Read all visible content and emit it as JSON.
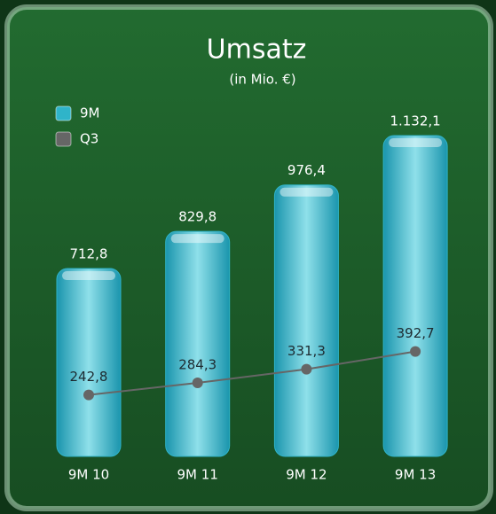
{
  "chart_data": {
    "type": "bar_line",
    "title": "Umsatz",
    "subtitle": "(in Mio. €)",
    "categories": [
      "9M 10",
      "9M 11",
      "9M 12",
      "9M 13"
    ],
    "series": [
      {
        "name": "9M",
        "type": "bar",
        "color": "#2fb4c9",
        "values": [
          712.8,
          829.8,
          976.4,
          1132.1
        ],
        "value_labels": [
          "712,8",
          "829,8",
          "976,4",
          "1.132,1"
        ]
      },
      {
        "name": "Q3",
        "type": "line",
        "color": "#666666",
        "values": [
          242.8,
          284.3,
          331.3,
          392.7
        ],
        "value_labels": [
          "242,8",
          "284,3",
          "331,3",
          "392,7"
        ]
      }
    ]
  }
}
